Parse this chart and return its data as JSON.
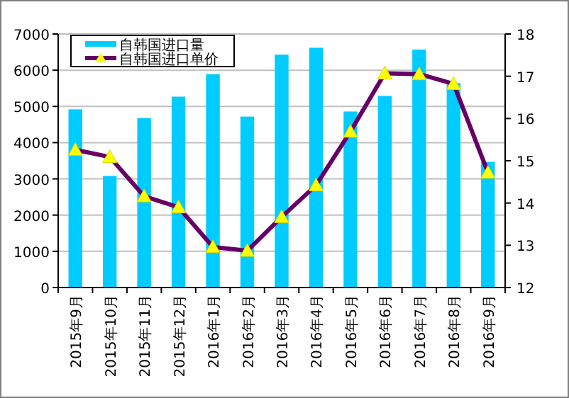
{
  "chart_data": {
    "type": "bar",
    "categories": [
      "2015年9月",
      "2015年10月",
      "2015年11月",
      "2015年12月",
      "2016年1月",
      "2016年2月",
      "2016年3月",
      "2016年4月",
      "2016年5月",
      "2016年6月",
      "2016年7月",
      "2016年8月",
      "2016年9月"
    ],
    "series": [
      {
        "name": "自韩国进口量",
        "color": "#00ccff",
        "values": [
          4920,
          3080,
          4680,
          5270,
          5890,
          4720,
          6430,
          6620,
          4860,
          5290,
          6570,
          5650,
          3470
        ]
      },
      {
        "name": "自韩国进口单价",
        "type": "line",
        "axis": "y2",
        "color": "#660066",
        "marker": "triangle",
        "values": [
          15.26,
          15.09,
          14.16,
          13.9,
          12.96,
          12.87,
          13.67,
          14.42,
          15.69,
          17.07,
          17.05,
          16.82,
          14.72
        ]
      }
    ],
    "ylim": [
      0,
      7000
    ],
    "yticks": [
      0,
      1000,
      2000,
      3000,
      4000,
      5000,
      6000,
      7000
    ],
    "y2lim": [
      12,
      18
    ],
    "y2ticks": [
      12,
      13,
      14,
      15,
      16,
      17,
      18
    ],
    "grid": "y",
    "legend": "top left"
  }
}
